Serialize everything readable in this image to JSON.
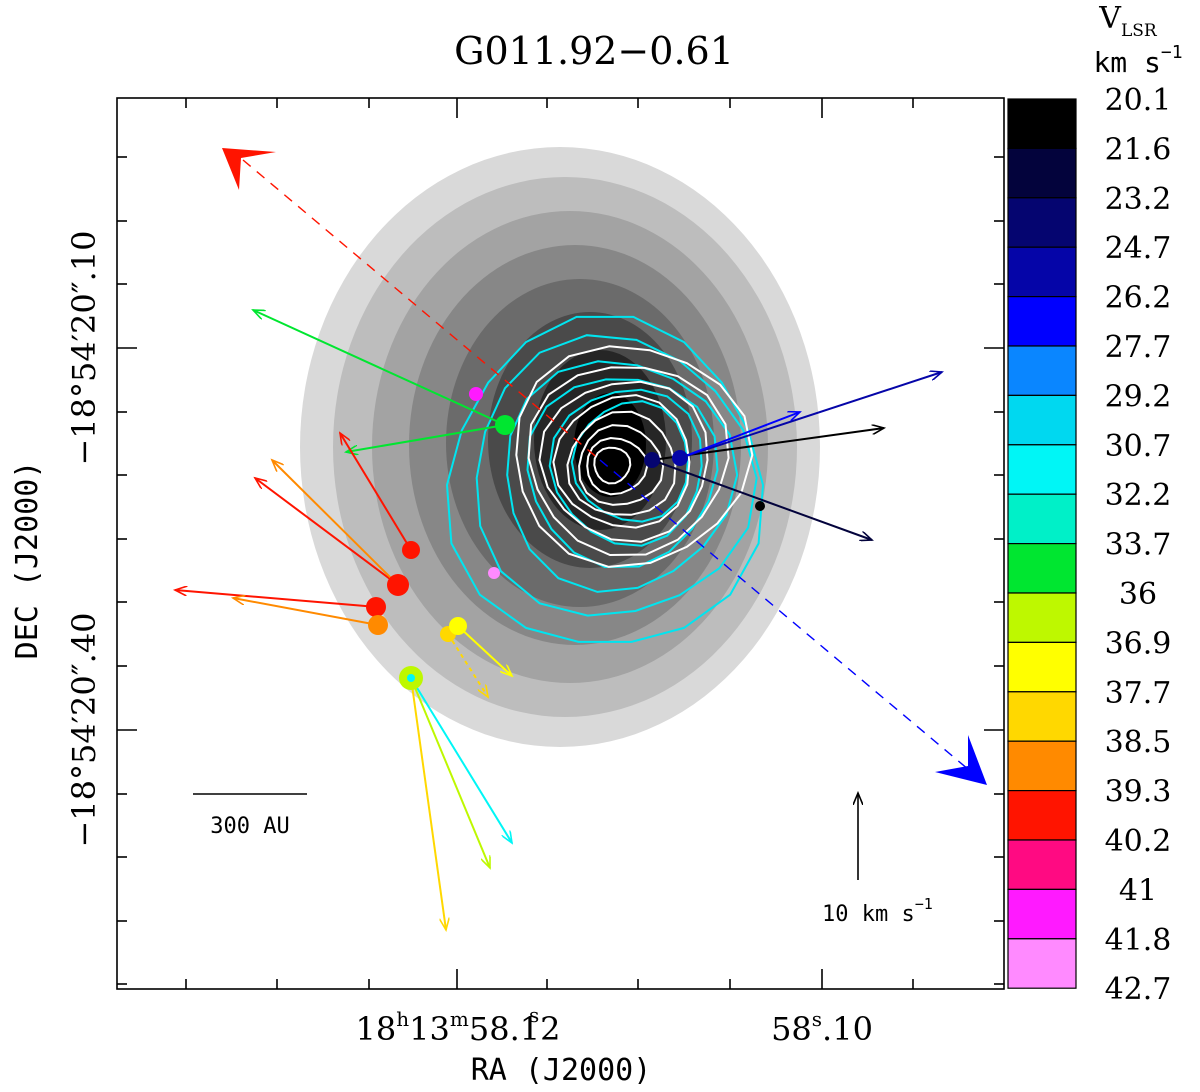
{
  "chart_data": {
    "type": "scatter",
    "title": "G011.92−0.61",
    "xlabel": "RA (J2000)",
    "ylabel": "DEC (J2000)",
    "x_ticks": [
      {
        "label_h": "18",
        "label_m": "13",
        "label_s": "58.12",
        "prefix": "",
        "sup_h": "h",
        "sup_m": "m",
        "sup_s": "s"
      },
      {
        "label_pre": "58",
        "sup_s": "s",
        "label_post": ".10"
      }
    ],
    "y_ticks": [
      "−18°54′20″10",
      "−18°54′20″40"
    ],
    "y_tick_texts": {
      "top": "−18°54′20″.10",
      "bottom": "−18°54′20″.40"
    },
    "scale_bar_label": "300 AU",
    "velocity_scale_label": "10 km s",
    "velocity_scale_sup": "−1",
    "colorbar": {
      "title_main": "V",
      "title_sub": "LSR",
      "unit": "km s",
      "unit_sup": "−1",
      "levels": [
        "20.1",
        "21.6",
        "23.2",
        "24.7",
        "26.2",
        "27.7",
        "29.2",
        "30.7",
        "32.2",
        "33.7",
        "36",
        "36.9",
        "37.7",
        "38.5",
        "39.3",
        "40.2",
        "41",
        "41.8",
        "42.7"
      ],
      "colors": [
        "#000000",
        "#03033c",
        "#050570",
        "#0505a8",
        "#0000ff",
        "#0a86ff",
        "#00d8f0",
        "#00f6f6",
        "#00f0c8",
        "#00e630",
        "#bef800",
        "#ffff00",
        "#ffd800",
        "#ff8a00",
        "#ff1400",
        "#ff0a82",
        "#ff1aff",
        "#ff8aff"
      ]
    },
    "maser_spots": [
      {
        "vlsr": 33.7,
        "color": "#00e630"
      },
      {
        "vlsr": 41.8,
        "color": "#ff1aff"
      },
      {
        "vlsr": 41.8,
        "color": "#ff8aff"
      },
      {
        "vlsr": 21.6,
        "color": "#050570"
      },
      {
        "vlsr": 24.7,
        "color": "#0505a8"
      },
      {
        "vlsr": 20.1,
        "color": "#000000"
      },
      {
        "vlsr": 39.3,
        "color": "#ff1400"
      },
      {
        "vlsr": 39.3,
        "color": "#ff1400"
      },
      {
        "vlsr": 39.3,
        "color": "#ff1400"
      },
      {
        "vlsr": 38.5,
        "color": "#ff8a00"
      },
      {
        "vlsr": 37.7,
        "color": "#ffd800"
      },
      {
        "vlsr": 36.9,
        "color": "#ffff00"
      },
      {
        "vlsr": 36,
        "color": "#bef800"
      }
    ],
    "outflow_axis": {
      "redshifted_color": "#ff1400",
      "blueshifted_color": "#0000ff"
    },
    "contour_colors": {
      "inner": "#ffffff",
      "outer": "#00e5f0"
    },
    "image_colormap": "greyscale continuum"
  }
}
